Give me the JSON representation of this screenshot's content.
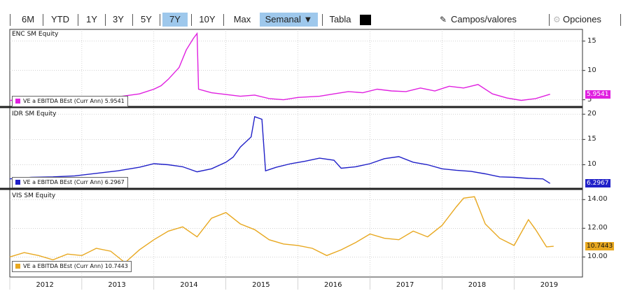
{
  "toolbar": {
    "ranges": [
      "6M",
      "YTD",
      "1Y",
      "3Y",
      "5Y",
      "7Y",
      "10Y",
      "Max"
    ],
    "selected_range": "7Y",
    "frequency": "Semanal ▼",
    "table_label": "Tabla",
    "fields_label": "Campos/valores",
    "options_label": "Opciones",
    "fields_icon": "chart-edit-icon",
    "options_icon": "gear-icon"
  },
  "chart_data": [
    {
      "type": "line",
      "panel_label": "ENC SM Equity",
      "series": [
        {
          "name": "VE a EBITDA BEst (Curr Ann) 5.9541",
          "color": "#e020e0"
        }
      ],
      "last_value": "5.9541",
      "yticks": [
        "5",
        "10",
        "15"
      ],
      "ylim": [
        4,
        17
      ],
      "x": [
        2012.0,
        2012.3,
        2012.6,
        2012.9,
        2013.2,
        2013.5,
        2013.8,
        2014.0,
        2014.1,
        2014.2,
        2014.35,
        2014.45,
        2014.55,
        2014.6,
        2014.62,
        2014.8,
        2015.0,
        2015.2,
        2015.4,
        2015.6,
        2015.8,
        2016.0,
        2016.3,
        2016.5,
        2016.7,
        2016.9,
        2017.1,
        2017.3,
        2017.5,
        2017.7,
        2017.9,
        2018.1,
        2018.3,
        2018.5,
        2018.7,
        2018.9,
        2019.1,
        2019.3,
        2019.5
      ],
      "y": [
        4.9,
        5.0,
        5.0,
        5.2,
        5.3,
        5.5,
        6.0,
        6.8,
        7.4,
        8.5,
        10.5,
        13.5,
        15.5,
        16.3,
        6.8,
        6.2,
        5.9,
        5.6,
        5.8,
        5.2,
        5.0,
        5.4,
        5.6,
        6.0,
        6.4,
        6.2,
        6.8,
        6.5,
        6.4,
        7.0,
        6.5,
        7.3,
        7.0,
        7.6,
        6.0,
        5.3,
        4.9,
        5.2,
        5.95
      ]
    },
    {
      "type": "line",
      "panel_label": "IDR SM Equity",
      "series": [
        {
          "name": "VE a EBITDA BEst (Curr Ann) 6.2967",
          "color": "#2020c8"
        }
      ],
      "last_value": "6.2967",
      "yticks": [
        "10",
        "15",
        "20"
      ],
      "ylim": [
        5.5,
        21
      ],
      "x": [
        2012.0,
        2012.3,
        2012.6,
        2012.9,
        2013.2,
        2013.5,
        2013.8,
        2014.0,
        2014.2,
        2014.4,
        2014.6,
        2014.8,
        2015.0,
        2015.1,
        2015.2,
        2015.35,
        2015.4,
        2015.5,
        2015.55,
        2015.7,
        2015.9,
        2016.1,
        2016.3,
        2016.5,
        2016.6,
        2016.8,
        2017.0,
        2017.2,
        2017.4,
        2017.6,
        2017.8,
        2018.0,
        2018.2,
        2018.4,
        2018.6,
        2018.8,
        2019.0,
        2019.2,
        2019.4,
        2019.5
      ],
      "y": [
        7.2,
        7.5,
        7.6,
        7.8,
        8.3,
        8.8,
        9.5,
        10.2,
        10.0,
        9.6,
        8.6,
        9.2,
        10.5,
        11.5,
        13.5,
        15.5,
        19.5,
        19.0,
        8.8,
        9.5,
        10.2,
        10.7,
        11.3,
        10.9,
        9.3,
        9.6,
        10.2,
        11.2,
        11.6,
        10.5,
        10.0,
        9.2,
        8.9,
        8.7,
        8.2,
        7.6,
        7.5,
        7.3,
        7.2,
        6.3
      ]
    },
    {
      "type": "line",
      "panel_label": "VIS SM Equity",
      "series": [
        {
          "name": "VE a EBITDA BEst (Curr Ann) 10.7443",
          "color": "#e8a820"
        }
      ],
      "last_value": "10.7443",
      "yticks": [
        "10.00",
        "12.00",
        "14.00"
      ],
      "ylim": [
        8.6,
        14.6
      ],
      "x": [
        2012.0,
        2012.2,
        2012.4,
        2012.6,
        2012.8,
        2013.0,
        2013.2,
        2013.4,
        2013.6,
        2013.8,
        2014.0,
        2014.2,
        2014.4,
        2014.6,
        2014.8,
        2015.0,
        2015.2,
        2015.4,
        2015.6,
        2015.8,
        2016.0,
        2016.2,
        2016.4,
        2016.6,
        2016.8,
        2017.0,
        2017.2,
        2017.4,
        2017.6,
        2017.8,
        2018.0,
        2018.2,
        2018.3,
        2018.45,
        2018.6,
        2018.8,
        2019.0,
        2019.2,
        2019.3,
        2019.45,
        2019.55
      ],
      "y": [
        10.0,
        10.3,
        10.1,
        9.8,
        10.2,
        10.1,
        10.6,
        10.4,
        9.6,
        10.5,
        11.2,
        11.8,
        12.1,
        11.4,
        12.7,
        13.1,
        12.3,
        11.9,
        11.2,
        10.9,
        10.8,
        10.6,
        10.1,
        10.5,
        11.0,
        11.6,
        11.3,
        11.2,
        11.8,
        11.4,
        12.2,
        13.5,
        14.1,
        14.2,
        12.3,
        11.3,
        10.8,
        12.6,
        11.9,
        10.7,
        10.74
      ]
    }
  ],
  "x_axis": {
    "labels": [
      "2012",
      "2013",
      "2014",
      "2015",
      "2016",
      "2017",
      "2018",
      "2019"
    ]
  },
  "colors": {
    "axis": "#333333",
    "grid": "#b8b8b8",
    "divider": "#222222"
  }
}
